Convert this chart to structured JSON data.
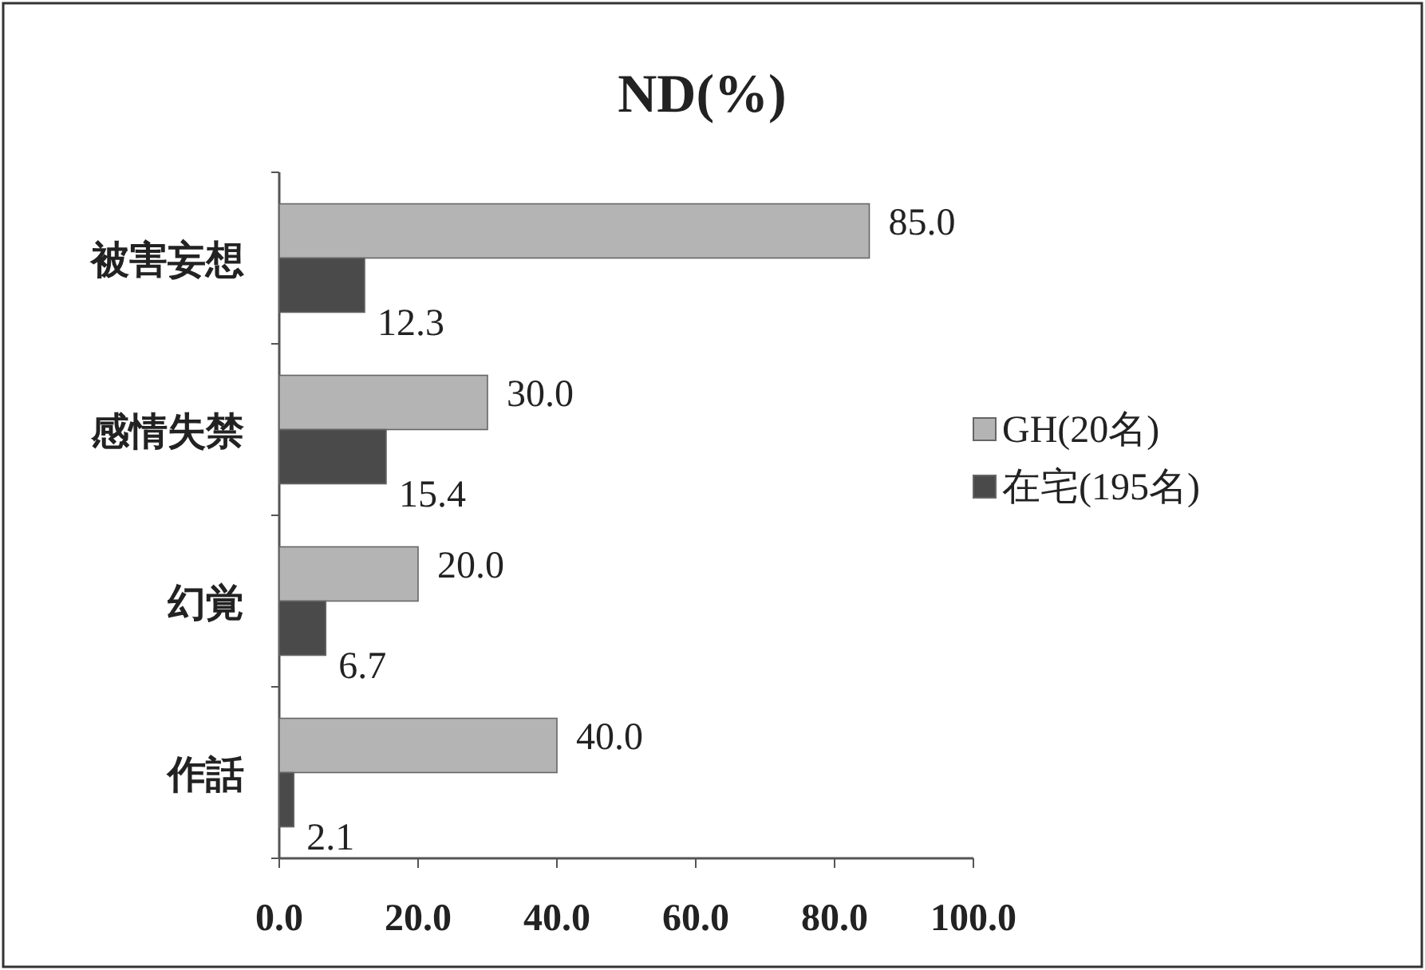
{
  "chart_data": {
    "type": "bar",
    "orientation": "horizontal",
    "title": "ND(%)",
    "categories": [
      "被害妄想",
      "感情失禁",
      "幻覚",
      "作話"
    ],
    "series": [
      {
        "name": "GH(20名)",
        "color": "#b4b4b4",
        "values": [
          85.0,
          30.0,
          20.0,
          40.0
        ]
      },
      {
        "name": "在宅(195名)",
        "color": "#4a4a4a",
        "values": [
          12.3,
          15.4,
          6.7,
          2.1
        ]
      }
    ],
    "xlim": [
      0,
      100
    ],
    "xticks": [
      {
        "value": 0,
        "label": "0.0"
      },
      {
        "value": 20,
        "label": "20.0"
      },
      {
        "value": 40,
        "label": "40.0"
      },
      {
        "value": 60,
        "label": "60.0"
      },
      {
        "value": 80,
        "label": "80.0"
      },
      {
        "value": 100,
        "label": "100.0"
      }
    ],
    "value_labels": [
      [
        "85.0",
        "30.0",
        "20.0",
        "40.0"
      ],
      [
        "12.3",
        "15.4",
        "6.7",
        "2.1"
      ]
    ],
    "legend": "right",
    "grid": false
  }
}
